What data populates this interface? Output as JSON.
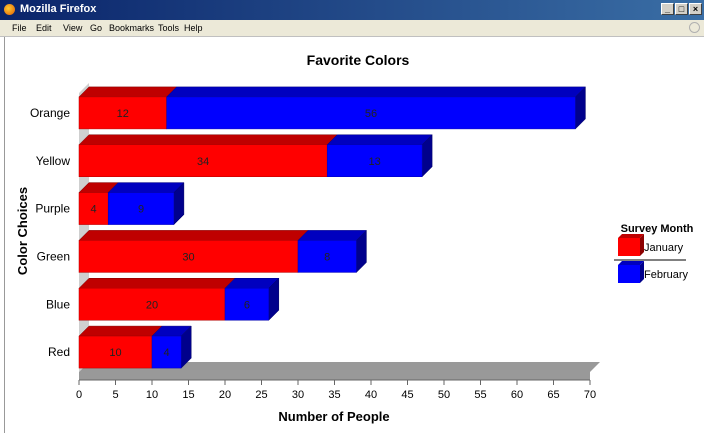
{
  "window": {
    "title": "Mozilla Firefox",
    "buttons": [
      "_",
      "□",
      "×"
    ]
  },
  "menu": {
    "items": [
      "File",
      "Edit",
      "View",
      "Go",
      "Bookmarks",
      "Tools",
      "Help"
    ]
  },
  "colors": {
    "january": "#ff0000",
    "february": "#0000ff",
    "floor": "#999999"
  },
  "chart_data": {
    "type": "bar",
    "orientation": "horizontal",
    "stacked": true,
    "three_d": true,
    "title": "Favorite Colors",
    "xlabel": "Number of People",
    "ylabel": "Color Choices",
    "categories": [
      "Orange",
      "Yellow",
      "Purple",
      "Green",
      "Blue",
      "Red"
    ],
    "series": [
      {
        "name": "January",
        "values": [
          12,
          34,
          4,
          30,
          20,
          10
        ]
      },
      {
        "name": "February",
        "values": [
          56,
          13,
          9,
          8,
          6,
          4
        ]
      }
    ],
    "xlim": [
      0,
      70
    ],
    "xticks": [
      0,
      5,
      10,
      15,
      20,
      25,
      30,
      35,
      40,
      45,
      50,
      55,
      60,
      65,
      70
    ],
    "data_labels": true,
    "legend": {
      "title": "Survey Month",
      "placement": "right",
      "entries": [
        "January",
        "February"
      ]
    }
  }
}
